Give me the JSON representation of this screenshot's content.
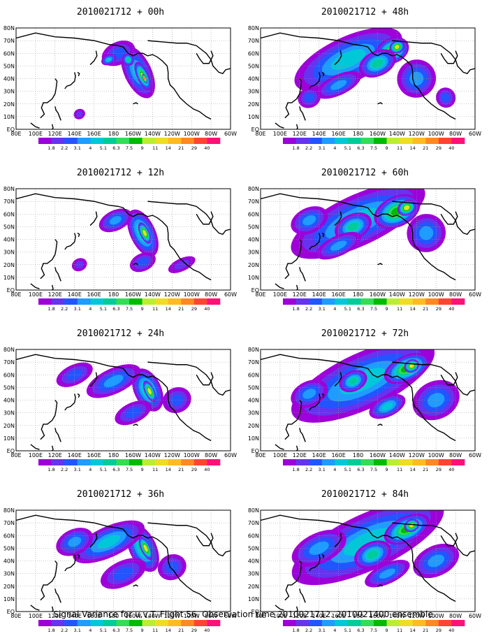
{
  "footer": "Signal Variance for u,v,T. Flight 56. Observation time 2010021712. 2010021400 ensemble.",
  "colorbar": {
    "colors": [
      "#9d00d8",
      "#6633ee",
      "#2255ff",
      "#1f9cff",
      "#00c8d8",
      "#00cc99",
      "#33dd55",
      "#00bb00",
      "#bbee33",
      "#eedd22",
      "#ffbb22",
      "#ff8822",
      "#ff4433",
      "#ff1177"
    ],
    "labels": [
      "1.8",
      "2.2",
      "3.1",
      "4",
      "5.1",
      "6.3",
      "7.5",
      "9",
      "11",
      "14",
      "21",
      "29",
      "40"
    ]
  },
  "chart_data": {
    "type": "heatmap",
    "x_tick_labels": [
      "80E",
      "100E",
      "120E",
      "140E",
      "160E",
      "180",
      "160W",
      "140W",
      "120W",
      "100W",
      "80W",
      "60W"
    ],
    "y_tick_labels": [
      "EQ",
      "10N",
      "20N",
      "30N",
      "40N",
      "50N",
      "60N",
      "70N",
      "80N"
    ],
    "levels": [
      1.8,
      2.2,
      3.1,
      4,
      5.1,
      6.3,
      7.5,
      9,
      11,
      14,
      21,
      29,
      40
    ],
    "panels": [
      {
        "title": "2010021712 + 00h",
        "lead_hours": 0,
        "blobs": [
          [
            -155,
            45,
            14,
            22,
            4
          ],
          [
            -150,
            42,
            6,
            12,
            8
          ],
          [
            -148,
            40,
            2,
            4,
            12
          ],
          [
            -175,
            60,
            18,
            9,
            2
          ],
          [
            -165,
            55,
            6,
            5,
            5
          ],
          [
            -185,
            55,
            8,
            4,
            4
          ],
          [
            -215,
            12,
            6,
            4,
            1
          ]
        ]
      },
      {
        "title": "2010021712 + 48h",
        "lead_hours": 48,
        "blobs": [
          [
            -190,
            55,
            60,
            18,
            4
          ],
          [
            -145,
            62,
            18,
            10,
            7
          ],
          [
            -140,
            65,
            8,
            5,
            9
          ],
          [
            -160,
            52,
            20,
            10,
            5
          ],
          [
            -200,
            35,
            25,
            8,
            3
          ],
          [
            -120,
            40,
            20,
            15,
            3
          ],
          [
            -230,
            25,
            12,
            8,
            2
          ],
          [
            -90,
            25,
            10,
            8,
            2
          ]
        ]
      },
      {
        "title": "2010021712 + 12h",
        "lead_hours": 12,
        "blobs": [
          [
            -150,
            45,
            13,
            20,
            5
          ],
          [
            -148,
            45,
            5,
            9,
            9
          ],
          [
            -178,
            55,
            18,
            8,
            3
          ],
          [
            -150,
            22,
            14,
            7,
            2
          ],
          [
            -215,
            20,
            8,
            5,
            1
          ],
          [
            -110,
            20,
            15,
            5,
            1
          ]
        ]
      },
      {
        "title": "2010021712 + 60h",
        "lead_hours": 60,
        "blobs": [
          [
            -180,
            55,
            75,
            20,
            4
          ],
          [
            -140,
            62,
            25,
            12,
            7
          ],
          [
            -130,
            65,
            10,
            6,
            9
          ],
          [
            -185,
            50,
            20,
            10,
            5
          ],
          [
            -230,
            55,
            20,
            10,
            3
          ],
          [
            -110,
            45,
            20,
            15,
            3
          ],
          [
            -200,
            35,
            25,
            8,
            3
          ]
        ]
      },
      {
        "title": "2010021712 + 24h",
        "lead_hours": 24,
        "blobs": [
          [
            -145,
            48,
            14,
            18,
            5
          ],
          [
            -143,
            47,
            5,
            9,
            9
          ],
          [
            -180,
            55,
            30,
            10,
            3
          ],
          [
            -220,
            60,
            20,
            8,
            2
          ],
          [
            -160,
            30,
            20,
            8,
            2
          ],
          [
            -115,
            40,
            15,
            10,
            2
          ]
        ]
      },
      {
        "title": "2010021712 + 72h",
        "lead_hours": 72,
        "blobs": [
          [
            -175,
            55,
            80,
            22,
            4
          ],
          [
            -130,
            65,
            25,
            10,
            7
          ],
          [
            -125,
            67,
            8,
            5,
            9
          ],
          [
            -185,
            55,
            15,
            8,
            5
          ],
          [
            -230,
            45,
            20,
            10,
            3
          ],
          [
            -100,
            40,
            25,
            15,
            3
          ],
          [
            -150,
            35,
            20,
            8,
            4
          ]
        ]
      },
      {
        "title": "2010021712 + 36h",
        "lead_hours": 36,
        "blobs": [
          [
            -150,
            50,
            14,
            20,
            5
          ],
          [
            -147,
            50,
            5,
            10,
            9
          ],
          [
            -185,
            55,
            40,
            12,
            4
          ],
          [
            -220,
            55,
            20,
            10,
            3
          ],
          [
            -170,
            30,
            25,
            10,
            2
          ],
          [
            -120,
            35,
            15,
            10,
            2
          ]
        ]
      },
      {
        "title": "2010021712 + 84h",
        "lead_hours": 84,
        "blobs": [
          [
            -170,
            55,
            85,
            22,
            4
          ],
          [
            -130,
            65,
            25,
            10,
            7
          ],
          [
            -125,
            68,
            8,
            5,
            9
          ],
          [
            -165,
            45,
            20,
            10,
            5
          ],
          [
            -220,
            50,
            30,
            12,
            3
          ],
          [
            -100,
            40,
            25,
            12,
            3
          ],
          [
            -150,
            30,
            25,
            8,
            3
          ]
        ]
      }
    ]
  }
}
